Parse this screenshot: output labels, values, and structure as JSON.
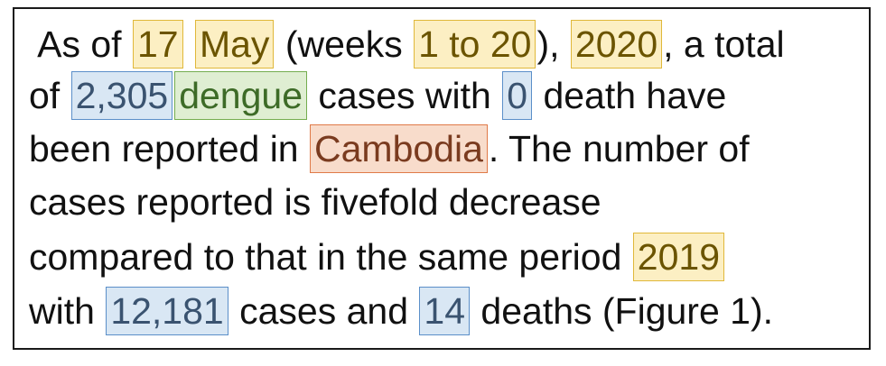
{
  "lines": [
    [
      {
        "text": " As of ",
        "type": "plain"
      },
      {
        "text": "17",
        "type": "date"
      },
      {
        "text": " ",
        "type": "plain"
      },
      {
        "text": "May",
        "type": "date"
      },
      {
        "text": " (weeks ",
        "type": "plain"
      },
      {
        "text": "1 to 20",
        "type": "date"
      },
      {
        "text": "), ",
        "type": "plain"
      },
      {
        "text": "2020",
        "type": "date"
      },
      {
        "text": ", a total",
        "type": "plain"
      }
    ],
    [
      {
        "text": "of ",
        "type": "plain"
      },
      {
        "text": "2,305",
        "type": "count"
      },
      {
        "text": "dengue",
        "type": "disease"
      },
      {
        "text": " cases with ",
        "type": "plain"
      },
      {
        "text": "0",
        "type": "count"
      },
      {
        "text": " death have",
        "type": "plain"
      }
    ],
    [
      {
        "text": "been reported in ",
        "type": "plain"
      },
      {
        "text": "Cambodia",
        "type": "country"
      },
      {
        "text": ". The number of",
        "type": "plain"
      }
    ],
    [
      {
        "text": "cases reported is fivefold decrease",
        "type": "plain"
      }
    ],
    [
      {
        "text": "compared to that in the same period ",
        "type": "plain"
      },
      {
        "text": "2019",
        "type": "date"
      }
    ],
    [
      {
        "text": "with ",
        "type": "plain"
      },
      {
        "text": "12,181",
        "type": "count"
      },
      {
        "text": " cases and ",
        "type": "plain"
      },
      {
        "text": "14",
        "type": "count"
      },
      {
        "text": " deaths (Figure 1).",
        "type": "plain"
      }
    ]
  ],
  "highlight_colors": {
    "date": {
      "fill": "#fcefc3",
      "border": "#e0b83a"
    },
    "count": {
      "fill": "#d9e7f4",
      "border": "#5b8fc9"
    },
    "disease": {
      "fill": "#dfeed2",
      "border": "#74ad4f"
    },
    "country": {
      "fill": "#f8dccb",
      "border": "#e07a48"
    }
  }
}
